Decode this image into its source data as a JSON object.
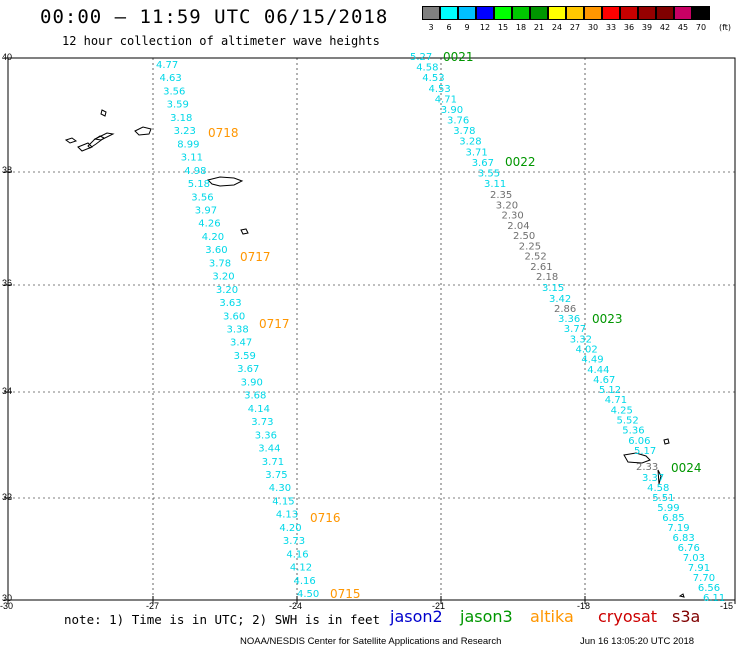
{
  "title": "00:00 – 11:59 UTC 06/15/2018",
  "subtitle": "12 hour collection of altimeter wave heights",
  "colorbar": {
    "labels": [
      "3",
      "6",
      "9",
      "12",
      "15",
      "18",
      "21",
      "24",
      "27",
      "30",
      "33",
      "36",
      "39",
      "42",
      "45",
      "70"
    ],
    "unit": "(ft)",
    "colors": [
      "#808080",
      "#00ffff",
      "#00c0ff",
      "#0000ff",
      "#00ff00",
      "#00c800",
      "#009600",
      "#ffff00",
      "#ffc800",
      "#ff9600",
      "#ff0000",
      "#c80000",
      "#960000",
      "#800000",
      "#c80064",
      "#000000"
    ]
  },
  "axes": {
    "lat_labels": [
      "40",
      "38",
      "36",
      "34",
      "32",
      "30"
    ],
    "lon_labels": [
      "-30",
      "-27",
      "-24",
      "-21",
      "-18",
      "-15"
    ]
  },
  "note": "note: 1) Time is in UTC; 2) SWH is in feet",
  "satellites": [
    {
      "name": "jason2",
      "color": "#0000cc"
    },
    {
      "name": "jason3",
      "color": "#009600"
    },
    {
      "name": "altika",
      "color": "#ff9600"
    },
    {
      "name": "cryosat",
      "color": "#cc0000"
    },
    {
      "name": "s3a",
      "color": "#800000"
    }
  ],
  "footer_left": "NOAA/NESDIS Center for Satellite Applications and Research",
  "footer_right": "Jun 16 13:05:20 UTC 2018",
  "tracks": [
    {
      "color": "#00d8e8",
      "values": [
        "4.77",
        "4.63",
        "3.56",
        "3.59",
        "3.18",
        "3.23",
        "8.99",
        "3.11",
        "4.98",
        "5.18",
        "3.56",
        "3.97",
        "4.26",
        "4.20",
        "3.60",
        "3.78",
        "3.20",
        "3.20",
        "3.63",
        "3.60",
        "3.38",
        "3.47",
        "3.59",
        "3.67",
        "3.90",
        "3.68",
        "4.14",
        "3.73",
        "3.36",
        "3.44",
        "3.71",
        "3.75",
        "4.30",
        "4.15",
        "4.13",
        "4.20",
        "3.73",
        "4.16",
        "4.12",
        "4.16",
        "4.50"
      ]
    },
    {
      "color": "#00d8e8",
      "values": [
        "5.27",
        "4.58",
        "4.53",
        "4.53",
        "4.71",
        "3.90",
        "3.76",
        "3.78",
        "3.28",
        "3.71",
        "3.67",
        "3.55",
        "3.11"
      ]
    },
    {
      "color": "#707070",
      "values": [
        "2.35",
        "3.20",
        "2.30",
        "2.04",
        "2.50",
        "2.25",
        "2.52",
        "2.61",
        "2.18"
      ]
    },
    {
      "color": "#00d8e8",
      "values": [
        "3.15",
        "3.42"
      ]
    },
    {
      "color": "#707070",
      "values": [
        "2.86"
      ]
    },
    {
      "color": "#00d8e8",
      "values": [
        "3.36",
        "3.77",
        "3.32",
        "4.02",
        "4.49",
        "4.44",
        "4.67",
        "5.12",
        "4.71",
        "4.25",
        "5.52",
        "5.36",
        "6.06",
        "5.17"
      ]
    },
    {
      "color": "#707070",
      "values": [
        "2.33"
      ]
    },
    {
      "color": "#00d8e8",
      "values": [
        "3.37",
        "4.58",
        "5.51",
        "5.99",
        "6.85",
        "7.19",
        "6.83",
        "6.76",
        "7.03",
        "7.91",
        "7.70",
        "6.56",
        "6.11"
      ]
    }
  ],
  "time_labels": [
    {
      "text": "0021",
      "color": "#009600"
    },
    {
      "text": "0022",
      "color": "#009600"
    },
    {
      "text": "0023",
      "color": "#009600"
    },
    {
      "text": "0024",
      "color": "#009600"
    },
    {
      "text": "0718",
      "color": "#ff9600"
    },
    {
      "text": "0717",
      "color": "#ff9600"
    },
    {
      "text": "0717",
      "color": "#ff9600"
    },
    {
      "text": "0716",
      "color": "#ff9600"
    },
    {
      "text": "0715",
      "color": "#ff9600"
    }
  ]
}
